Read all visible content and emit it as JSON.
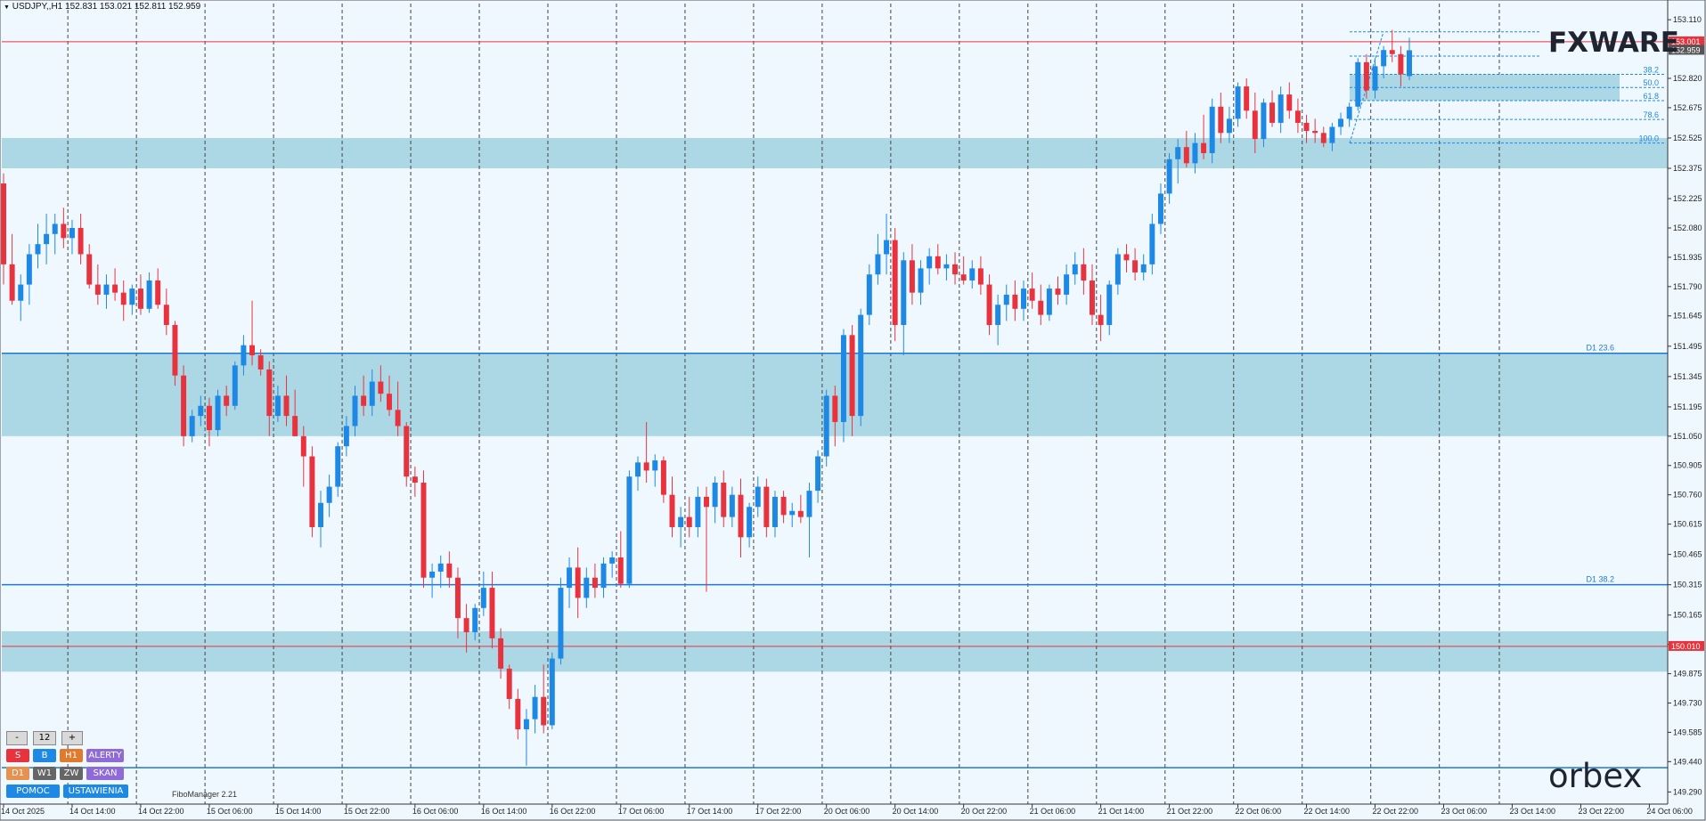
{
  "header": {
    "symbol_line": "USDJPY,,H1  152.831 153.021 152.811 152.959"
  },
  "logos": {
    "top": "FXWARE",
    "bottom": "orbex"
  },
  "colors": {
    "background": "#f0f8ff",
    "bull": "#1e88e5",
    "bear": "#e8333f",
    "zone": "#acd8e5",
    "support_line": "#1f78d1",
    "red_line": "#e8333f"
  },
  "controls": {
    "zoom": {
      "minus": "-",
      "value": "12",
      "plus": "+"
    },
    "rows": [
      [
        {
          "label": "S",
          "color": "#e8333f"
        },
        {
          "label": "B",
          "color": "#1e88e5"
        },
        {
          "label": "H1",
          "color": "#e07a2c"
        },
        {
          "label": "ALERTY",
          "color": "#8e6bd8"
        }
      ],
      [
        {
          "label": "D1",
          "color": "#e8914f"
        },
        {
          "label": "W1",
          "color": "#666666"
        },
        {
          "label": "ZW",
          "color": "#666666"
        },
        {
          "label": "SKAN",
          "color": "#8e6bd8"
        }
      ],
      [
        {
          "label": "POMOC",
          "color": "#1e88e5"
        },
        {
          "label": "USTAWIENIA",
          "color": "#1e88e5"
        }
      ]
    ],
    "fibo_manager": "FiboManager 2.21"
  },
  "chart_data": {
    "type": "candlestick",
    "symbol": "USDJPY",
    "timeframe": "H1",
    "ylim": [
      149.23,
      153.19
    ],
    "y_ticks": [
      "153.110",
      "152.970",
      "152.820",
      "152.675",
      "152.525",
      "152.375",
      "152.225",
      "152.080",
      "151.935",
      "151.790",
      "151.645",
      "151.495",
      "151.345",
      "151.195",
      "151.050",
      "150.905",
      "150.760",
      "150.615",
      "150.465",
      "150.315",
      "150.165",
      "150.020",
      "149.875",
      "149.730",
      "149.585",
      "149.440",
      "149.290"
    ],
    "x_labels": [
      "14 Oct 2025",
      "14 Oct 14:00",
      "14 Oct 22:00",
      "15 Oct 06:00",
      "15 Oct 14:00",
      "15 Oct 22:00",
      "16 Oct 06:00",
      "16 Oct 14:00",
      "16 Oct 22:00",
      "17 Oct 06:00",
      "17 Oct 14:00",
      "17 Oct 22:00",
      "20 Oct 06:00",
      "20 Oct 14:00",
      "20 Oct 22:00",
      "21 Oct 06:00",
      "21 Oct 14:00",
      "21 Oct 22:00",
      "22 Oct 06:00",
      "22 Oct 14:00",
      "22 Oct 22:00",
      "23 Oct 06:00",
      "23 Oct 14:00",
      "23 Oct 22:00",
      "24 Oct 06:00"
    ],
    "price_markers": [
      {
        "label": "153.001",
        "value": 153.001,
        "color": "#e8333f"
      },
      {
        "label": "152.959",
        "value": 152.959,
        "color": "#555555"
      },
      {
        "label": "150.010",
        "value": 150.01,
        "color": "#e8333f"
      }
    ],
    "zones": [
      {
        "from": 152.375,
        "to": 152.525
      },
      {
        "from": 151.05,
        "to": 151.46
      },
      {
        "from": 149.885,
        "to": 150.085
      }
    ],
    "lines": [
      {
        "label": "D1 23.6",
        "value": 151.46,
        "color": "#1f78d1"
      },
      {
        "label": "D1 38.2",
        "value": 150.315,
        "color": "#1f78d1"
      },
      {
        "label": "",
        "value": 149.41,
        "color": "#1f78d1"
      },
      {
        "label": "",
        "value": 153.001,
        "color": "#e8333f"
      },
      {
        "label": "",
        "value": 150.01,
        "color": "#e8333f"
      }
    ],
    "fib": {
      "high": 153.05,
      "low": 152.5,
      "levels": [
        {
          "label": "38.2",
          "value": 152.84
        },
        {
          "label": "50.0",
          "value": 152.775
        },
        {
          "label": "61.8",
          "value": 152.71
        },
        {
          "label": "78.6",
          "value": 152.617
        },
        {
          "label": "100.0",
          "value": 152.5
        }
      ],
      "zone": {
        "from": 152.71,
        "to": 152.84
      }
    },
    "candles": [
      [
        152.3,
        152.35,
        151.8,
        151.9
      ],
      [
        151.9,
        152.05,
        151.7,
        151.72
      ],
      [
        151.72,
        151.85,
        151.62,
        151.8
      ],
      [
        151.8,
        152.0,
        151.7,
        151.95
      ],
      [
        151.95,
        152.1,
        151.88,
        152.0
      ],
      [
        152.0,
        152.15,
        151.9,
        152.05
      ],
      [
        152.05,
        152.15,
        151.95,
        152.1
      ],
      [
        152.1,
        152.18,
        151.98,
        152.03
      ],
      [
        152.03,
        152.12,
        151.95,
        152.08
      ],
      [
        152.08,
        152.15,
        151.9,
        151.95
      ],
      [
        151.95,
        152.0,
        151.78,
        151.8
      ],
      [
        151.8,
        151.9,
        151.7,
        151.75
      ],
      [
        151.75,
        151.85,
        151.68,
        151.8
      ],
      [
        151.8,
        151.88,
        151.72,
        151.76
      ],
      [
        151.76,
        151.82,
        151.62,
        151.7
      ],
      [
        151.7,
        151.8,
        151.65,
        151.78
      ],
      [
        151.78,
        151.85,
        151.65,
        151.68
      ],
      [
        151.68,
        151.86,
        151.66,
        151.82
      ],
      [
        151.82,
        151.88,
        151.68,
        151.7
      ],
      [
        151.7,
        151.78,
        151.55,
        151.6
      ],
      [
        151.6,
        151.62,
        151.3,
        151.35
      ],
      [
        151.35,
        151.4,
        151.0,
        151.05
      ],
      [
        151.05,
        151.18,
        151.02,
        151.15
      ],
      [
        151.15,
        151.25,
        151.1,
        151.2
      ],
      [
        151.2,
        151.24,
        151.0,
        151.08
      ],
      [
        151.08,
        151.28,
        151.05,
        151.25
      ],
      [
        151.25,
        151.3,
        151.15,
        151.2
      ],
      [
        151.2,
        151.42,
        151.18,
        151.4
      ],
      [
        151.4,
        151.55,
        151.35,
        151.5
      ],
      [
        151.5,
        151.72,
        151.4,
        151.45
      ],
      [
        151.45,
        151.48,
        151.35,
        151.38
      ],
      [
        151.38,
        151.42,
        151.05,
        151.15
      ],
      [
        151.15,
        151.3,
        151.12,
        151.25
      ],
      [
        151.25,
        151.35,
        151.1,
        151.15
      ],
      [
        151.15,
        151.28,
        151.05,
        151.05
      ],
      [
        151.05,
        151.1,
        150.8,
        150.95
      ],
      [
        150.95,
        151.0,
        150.55,
        150.6
      ],
      [
        150.6,
        150.78,
        150.5,
        150.72
      ],
      [
        150.72,
        150.86,
        150.65,
        150.8
      ],
      [
        150.8,
        151.02,
        150.75,
        151.0
      ],
      [
        151.0,
        151.15,
        150.95,
        151.1
      ],
      [
        151.1,
        151.3,
        151.05,
        151.25
      ],
      [
        151.25,
        151.35,
        151.15,
        151.2
      ],
      [
        151.2,
        151.38,
        151.15,
        151.32
      ],
      [
        151.32,
        151.4,
        151.22,
        151.26
      ],
      [
        151.26,
        151.35,
        151.15,
        151.18
      ],
      [
        151.18,
        151.32,
        151.05,
        151.1
      ],
      [
        151.1,
        151.12,
        150.8,
        150.85
      ],
      [
        150.85,
        150.9,
        150.75,
        150.82
      ],
      [
        150.82,
        150.88,
        150.3,
        150.35
      ],
      [
        150.35,
        150.42,
        150.25,
        150.38
      ],
      [
        150.38,
        150.46,
        150.3,
        150.42
      ],
      [
        150.42,
        150.48,
        150.3,
        150.35
      ],
      [
        150.35,
        150.4,
        150.05,
        150.15
      ],
      [
        150.15,
        150.22,
        149.98,
        150.08
      ],
      [
        150.08,
        150.22,
        150.04,
        150.2
      ],
      [
        150.2,
        150.38,
        150.16,
        150.3
      ],
      [
        150.3,
        150.38,
        150.0,
        150.05
      ],
      [
        150.05,
        150.1,
        149.85,
        149.9
      ],
      [
        149.9,
        149.92,
        149.7,
        149.75
      ],
      [
        149.75,
        149.8,
        149.55,
        149.6
      ],
      [
        149.6,
        149.7,
        149.42,
        149.65
      ],
      [
        149.65,
        149.82,
        149.58,
        149.76
      ],
      [
        149.76,
        149.92,
        149.58,
        149.62
      ],
      [
        149.62,
        149.98,
        149.6,
        149.95
      ],
      [
        149.95,
        150.35,
        149.92,
        150.3
      ],
      [
        150.3,
        150.45,
        150.2,
        150.4
      ],
      [
        150.4,
        150.5,
        150.15,
        150.25
      ],
      [
        150.25,
        150.4,
        150.2,
        150.35
      ],
      [
        150.35,
        150.42,
        150.25,
        150.3
      ],
      [
        150.3,
        150.45,
        150.25,
        150.42
      ],
      [
        150.42,
        150.48,
        150.35,
        150.45
      ],
      [
        150.45,
        150.58,
        150.3,
        150.32
      ],
      [
        150.32,
        150.88,
        150.3,
        150.85
      ],
      [
        150.85,
        150.95,
        150.78,
        150.92
      ],
      [
        150.92,
        151.12,
        150.82,
        150.88
      ],
      [
        150.88,
        150.96,
        150.8,
        150.93
      ],
      [
        150.93,
        150.95,
        150.72,
        150.76
      ],
      [
        150.76,
        150.85,
        150.55,
        150.6
      ],
      [
        150.6,
        150.7,
        150.5,
        150.65
      ],
      [
        150.65,
        150.75,
        150.55,
        150.6
      ],
      [
        150.6,
        150.8,
        150.55,
        150.75
      ],
      [
        150.75,
        150.8,
        150.28,
        150.7
      ],
      [
        150.7,
        150.85,
        150.62,
        150.82
      ],
      [
        150.82,
        150.88,
        150.6,
        150.65
      ],
      [
        150.65,
        150.8,
        150.6,
        150.76
      ],
      [
        150.76,
        150.84,
        150.45,
        150.55
      ],
      [
        150.55,
        150.72,
        150.5,
        150.7
      ],
      [
        150.7,
        150.85,
        150.65,
        150.8
      ],
      [
        150.8,
        150.84,
        150.55,
        150.6
      ],
      [
        150.6,
        150.78,
        150.55,
        150.75
      ],
      [
        150.75,
        150.78,
        150.62,
        150.66
      ],
      [
        150.66,
        150.72,
        150.6,
        150.68
      ],
      [
        150.68,
        150.76,
        150.62,
        150.65
      ],
      [
        150.65,
        150.82,
        150.45,
        150.78
      ],
      [
        150.78,
        150.98,
        150.72,
        150.95
      ],
      [
        150.95,
        151.28,
        150.9,
        151.25
      ],
      [
        151.25,
        151.3,
        151.0,
        151.12
      ],
      [
        151.12,
        151.58,
        151.02,
        151.55
      ],
      [
        151.55,
        151.6,
        151.05,
        151.15
      ],
      [
        151.15,
        151.68,
        151.1,
        151.65
      ],
      [
        151.65,
        151.9,
        151.6,
        151.85
      ],
      [
        151.85,
        152.05,
        151.8,
        151.95
      ],
      [
        151.95,
        152.15,
        151.85,
        152.02
      ],
      [
        152.02,
        152.08,
        151.52,
        151.6
      ],
      [
        151.6,
        151.96,
        151.45,
        151.92
      ],
      [
        151.92,
        152.0,
        151.7,
        151.76
      ],
      [
        151.76,
        151.92,
        151.7,
        151.88
      ],
      [
        151.88,
        151.98,
        151.8,
        151.94
      ],
      [
        151.94,
        152.0,
        151.85,
        151.88
      ],
      [
        151.88,
        151.95,
        151.82,
        151.9
      ],
      [
        151.9,
        151.96,
        151.8,
        151.85
      ],
      [
        151.85,
        151.94,
        151.8,
        151.82
      ],
      [
        151.82,
        151.92,
        151.78,
        151.88
      ],
      [
        151.88,
        151.94,
        151.75,
        151.8
      ],
      [
        151.8,
        151.85,
        151.55,
        151.6
      ],
      [
        151.6,
        151.75,
        151.5,
        151.7
      ],
      [
        151.7,
        151.8,
        151.62,
        151.75
      ],
      [
        151.75,
        151.82,
        151.62,
        151.68
      ],
      [
        151.68,
        151.82,
        151.62,
        151.78
      ],
      [
        151.78,
        151.86,
        151.68,
        151.72
      ],
      [
        151.72,
        151.8,
        151.6,
        151.65
      ],
      [
        151.65,
        151.8,
        151.62,
        151.78
      ],
      [
        151.78,
        151.84,
        151.7,
        151.75
      ],
      [
        151.75,
        151.9,
        151.7,
        151.85
      ],
      [
        151.85,
        151.96,
        151.8,
        151.9
      ],
      [
        151.9,
        151.98,
        151.75,
        151.82
      ],
      [
        151.82,
        151.9,
        151.6,
        151.65
      ],
      [
        151.65,
        151.75,
        151.52,
        151.6
      ],
      [
        151.6,
        151.82,
        151.55,
        151.8
      ],
      [
        151.8,
        151.98,
        151.75,
        151.95
      ],
      [
        151.95,
        152.0,
        151.86,
        151.92
      ],
      [
        151.92,
        151.98,
        151.82,
        151.86
      ],
      [
        151.86,
        151.95,
        151.82,
        151.9
      ],
      [
        151.9,
        152.15,
        151.85,
        152.1
      ],
      [
        152.1,
        152.3,
        152.05,
        152.25
      ],
      [
        152.25,
        152.45,
        152.2,
        152.42
      ],
      [
        152.42,
        152.52,
        152.3,
        152.48
      ],
      [
        152.48,
        152.56,
        152.38,
        152.4
      ],
      [
        152.4,
        152.55,
        152.35,
        152.5
      ],
      [
        152.5,
        152.64,
        152.42,
        152.45
      ],
      [
        152.45,
        152.72,
        152.4,
        152.68
      ],
      [
        152.68,
        152.75,
        152.5,
        152.55
      ],
      [
        152.55,
        152.68,
        152.5,
        152.62
      ],
      [
        152.62,
        152.8,
        152.58,
        152.78
      ],
      [
        152.78,
        152.82,
        152.62,
        152.66
      ],
      [
        152.66,
        152.75,
        152.45,
        152.52
      ],
      [
        152.52,
        152.72,
        152.48,
        152.7
      ],
      [
        152.7,
        152.76,
        152.58,
        152.6
      ],
      [
        152.6,
        152.78,
        152.55,
        152.74
      ],
      [
        152.74,
        152.8,
        152.62,
        152.66
      ],
      [
        152.66,
        152.72,
        152.55,
        152.6
      ],
      [
        152.6,
        152.64,
        152.5,
        152.56
      ],
      [
        152.56,
        152.62,
        152.5,
        152.55
      ],
      [
        152.55,
        152.58,
        152.48,
        152.5
      ],
      [
        152.5,
        152.6,
        152.46,
        152.58
      ],
      [
        152.58,
        152.65,
        152.54,
        152.62
      ],
      [
        152.62,
        152.7,
        152.58,
        152.68
      ],
      [
        152.68,
        152.92,
        152.66,
        152.9
      ],
      [
        152.9,
        152.94,
        152.72,
        152.76
      ],
      [
        152.76,
        152.92,
        152.72,
        152.88
      ],
      [
        152.88,
        152.98,
        152.82,
        152.96
      ],
      [
        152.96,
        153.06,
        152.9,
        152.94
      ],
      [
        152.94,
        152.98,
        152.78,
        152.84
      ],
      [
        152.831,
        153.021,
        152.811,
        152.959
      ]
    ]
  }
}
